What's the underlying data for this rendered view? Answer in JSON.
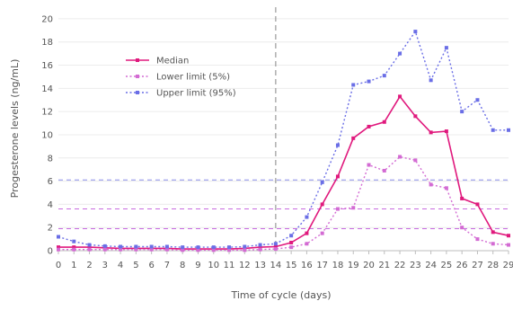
{
  "chart_data": {
    "type": "line",
    "title": "",
    "xlabel": "Time of cycle (days)",
    "ylabel": "Progesterone levels (ng/mL)",
    "xlim": [
      0,
      29
    ],
    "ylim": [
      0,
      21
    ],
    "x": [
      0,
      1,
      2,
      3,
      4,
      5,
      6,
      7,
      8,
      9,
      10,
      11,
      12,
      13,
      14,
      15,
      16,
      17,
      18,
      19,
      20,
      21,
      22,
      23,
      24,
      25,
      26,
      27,
      28,
      29
    ],
    "x_ticks": [
      0,
      1,
      2,
      3,
      4,
      5,
      6,
      7,
      8,
      9,
      10,
      11,
      12,
      13,
      14,
      15,
      16,
      17,
      18,
      19,
      20,
      21,
      22,
      23,
      24,
      25,
      26,
      27,
      28,
      29
    ],
    "y_ticks": [
      0,
      2,
      4,
      6,
      8,
      10,
      12,
      14,
      16,
      18,
      20
    ],
    "grid": "y-major",
    "legend_position": "top-left",
    "series": [
      {
        "name": "Median",
        "style": "solid",
        "color": "#e0197d",
        "values": [
          0.3,
          0.3,
          0.3,
          0.25,
          0.2,
          0.2,
          0.2,
          0.2,
          0.15,
          0.15,
          0.15,
          0.15,
          0.2,
          0.3,
          0.35,
          0.7,
          1.5,
          4.0,
          6.4,
          9.7,
          10.7,
          11.1,
          13.3,
          11.6,
          10.2,
          10.3,
          4.5,
          4.0,
          1.6,
          1.3
        ]
      },
      {
        "name": "Lower limit (5%)",
        "style": "dotted",
        "color": "#d36bd3",
        "values": [
          0.1,
          0.1,
          0.1,
          0.1,
          0.1,
          0.1,
          0.1,
          0.1,
          0.05,
          0.05,
          0.05,
          0.05,
          0.05,
          0.1,
          0.15,
          0.3,
          0.6,
          1.5,
          3.6,
          3.7,
          7.4,
          6.9,
          8.1,
          7.8,
          5.7,
          5.4,
          2.0,
          1.0,
          0.6,
          0.5
        ]
      },
      {
        "name": "Upper limit (95%)",
        "style": "dotted",
        "color": "#6a6ee6",
        "values": [
          1.2,
          0.8,
          0.5,
          0.4,
          0.35,
          0.35,
          0.35,
          0.35,
          0.3,
          0.3,
          0.3,
          0.3,
          0.35,
          0.5,
          0.6,
          1.3,
          2.9,
          5.9,
          9.1,
          14.3,
          14.6,
          15.1,
          17.0,
          18.9,
          14.7,
          17.5,
          12.0,
          13.0,
          10.4,
          10.4
        ]
      }
    ],
    "reference_lines": [
      {
        "axis": "x",
        "value": 14,
        "color": "#9a9a9a",
        "style": "dashed"
      },
      {
        "axis": "y",
        "value": 1.9,
        "color": "#c86be0",
        "style": "dashed"
      },
      {
        "axis": "y",
        "value": 3.6,
        "color": "#c86be0",
        "style": "dashed"
      },
      {
        "axis": "y",
        "value": 6.1,
        "color": "#8a8ee8",
        "style": "dashed"
      }
    ]
  }
}
